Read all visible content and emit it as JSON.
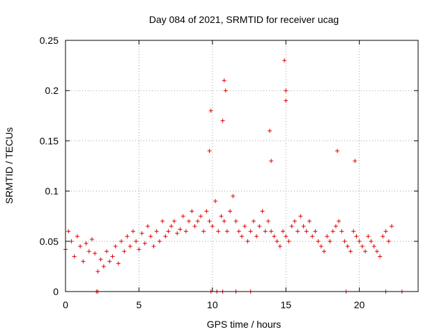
{
  "chart_data": {
    "type": "scatter",
    "title": "Day 084 of 2021, SRMTID for receiver ucag",
    "xlabel": "GPS time / hours",
    "ylabel": "SRMTID / TECUs",
    "xlim": [
      0,
      24
    ],
    "ylim": [
      0,
      0.25
    ],
    "x_ticks": [
      0,
      5,
      10,
      15,
      20
    ],
    "y_ticks": [
      0,
      0.05,
      0.1,
      0.15,
      0.2,
      0.25
    ],
    "x_tick_labels": [
      "0",
      "5",
      "10",
      "15",
      "20"
    ],
    "y_tick_labels": [
      "0",
      "0.05",
      "0.1",
      "0.15",
      "0.2",
      "0.25"
    ],
    "grid": true,
    "marker": "plus",
    "color": "#e00000",
    "series": [
      {
        "name": "SRMTID",
        "x": [
          0.0,
          0.2,
          0.4,
          0.6,
          0.8,
          1.0,
          1.2,
          1.4,
          1.6,
          1.8,
          2.0,
          2.2,
          2.4,
          2.6,
          2.8,
          3.0,
          3.2,
          3.4,
          3.6,
          3.8,
          4.0,
          4.2,
          4.4,
          4.6,
          4.8,
          5.0,
          5.2,
          5.4,
          5.6,
          5.8,
          6.0,
          6.2,
          6.4,
          6.6,
          6.8,
          7.0,
          7.2,
          7.4,
          7.6,
          7.8,
          8.0,
          8.2,
          8.4,
          8.6,
          8.8,
          9.0,
          9.2,
          9.4,
          9.6,
          9.8,
          10.0,
          10.2,
          10.4,
          10.6,
          10.8,
          11.0,
          11.2,
          11.4,
          11.6,
          11.8,
          12.0,
          12.2,
          12.4,
          12.6,
          12.8,
          13.0,
          13.2,
          13.4,
          13.6,
          13.8,
          14.0,
          14.2,
          14.4,
          14.6,
          14.8,
          15.0,
          15.2,
          15.4,
          15.6,
          15.8,
          16.0,
          16.2,
          16.4,
          16.6,
          16.8,
          17.0,
          17.2,
          17.4,
          17.6,
          17.8,
          18.0,
          18.2,
          18.4,
          18.6,
          18.8,
          19.0,
          19.2,
          19.4,
          19.6,
          19.8,
          20.0,
          20.2,
          20.4,
          20.6,
          20.8,
          21.0,
          21.2,
          21.4,
          21.6,
          21.8,
          22.0,
          22.2,
          9.8,
          9.9,
          10.7,
          10.8,
          10.9,
          13.9,
          14.0,
          14.9,
          15.0,
          15.0,
          18.5,
          19.7,
          2.1,
          2.2,
          9.9,
          10.3,
          10.7,
          11.6,
          12.6,
          19.1,
          21.8,
          22.9
        ],
        "y": [
          0.042,
          0.06,
          0.05,
          0.035,
          0.055,
          0.045,
          0.03,
          0.048,
          0.04,
          0.052,
          0.038,
          0.02,
          0.032,
          0.025,
          0.04,
          0.03,
          0.035,
          0.045,
          0.028,
          0.05,
          0.04,
          0.055,
          0.045,
          0.06,
          0.05,
          0.042,
          0.058,
          0.048,
          0.065,
          0.055,
          0.045,
          0.06,
          0.05,
          0.07,
          0.055,
          0.06,
          0.065,
          0.07,
          0.058,
          0.062,
          0.075,
          0.06,
          0.07,
          0.08,
          0.065,
          0.07,
          0.075,
          0.06,
          0.08,
          0.07,
          0.065,
          0.09,
          0.06,
          0.075,
          0.07,
          0.06,
          0.08,
          0.095,
          0.07,
          0.06,
          0.055,
          0.065,
          0.05,
          0.06,
          0.07,
          0.055,
          0.065,
          0.08,
          0.06,
          0.07,
          0.06,
          0.055,
          0.05,
          0.045,
          0.06,
          0.055,
          0.05,
          0.065,
          0.07,
          0.06,
          0.075,
          0.065,
          0.06,
          0.07,
          0.055,
          0.06,
          0.05,
          0.045,
          0.04,
          0.055,
          0.05,
          0.06,
          0.065,
          0.07,
          0.06,
          0.05,
          0.045,
          0.04,
          0.06,
          0.055,
          0.05,
          0.045,
          0.04,
          0.055,
          0.05,
          0.045,
          0.04,
          0.035,
          0.055,
          0.06,
          0.05,
          0.065,
          0.14,
          0.18,
          0.17,
          0.21,
          0.2,
          0.16,
          0.13,
          0.23,
          0.2,
          0.19,
          0.14,
          0.13,
          0.0,
          0.0,
          0.0,
          0.0,
          0.0,
          0.0,
          0.0,
          0.0,
          0.0,
          0.0
        ]
      }
    ]
  }
}
